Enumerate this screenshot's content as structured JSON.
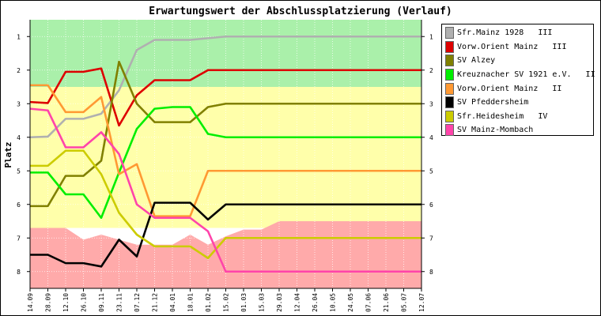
{
  "chart_data": {
    "type": "line",
    "title": "Erwartungswert der Abschlussplatzierung (Verlauf)",
    "ylabel": "Platz",
    "ylim": [
      0.5,
      8.5
    ],
    "yticks": [
      1,
      2,
      3,
      4,
      5,
      6,
      7,
      8
    ],
    "categories": [
      "14.09",
      "28.09",
      "12.10",
      "26.10",
      "09.11",
      "23.11",
      "07.12",
      "21.12",
      "04.01",
      "18.01",
      "01.02",
      "15.02",
      "01.03",
      "15.03",
      "29.03",
      "12.04",
      "26.04",
      "10.05",
      "24.05",
      "07.06",
      "21.06",
      "05.07",
      "12.07"
    ],
    "bands": [
      {
        "name": "upper",
        "color": "#aaf0aa",
        "from": 0.5,
        "to": 2.5
      },
      {
        "name": "middle",
        "color": "#ffffaa",
        "from": 2.5,
        "to": 6.7
      },
      {
        "name": "lower",
        "color": "#ffaaaa",
        "bottom": 8.5,
        "top": [
          6.7,
          6.7,
          6.7,
          7.05,
          6.9,
          7.05,
          7.2,
          7.2,
          7.2,
          6.9,
          7.2,
          6.95,
          6.75,
          6.75,
          6.5,
          6.5,
          6.5,
          6.5,
          6.5,
          6.5,
          6.5,
          6.5,
          6.5
        ]
      }
    ],
    "series": [
      {
        "name": "Sfr.Mainz 1928   III",
        "color": "#b0b0b0",
        "values": [
          4.0,
          3.98,
          3.45,
          3.45,
          3.3,
          2.6,
          1.4,
          1.1,
          1.1,
          1.1,
          1.05,
          1.0,
          1.0,
          1.0,
          1.0,
          1.0,
          1.0,
          1.0,
          1.0,
          1.0,
          1.0,
          1.0,
          1.0
        ]
      },
      {
        "name": "Vorw.Orient Mainz   III",
        "color": "#dd0000",
        "values": [
          2.95,
          2.98,
          2.05,
          2.05,
          1.95,
          3.65,
          2.75,
          2.3,
          2.3,
          2.3,
          2.0,
          2.0,
          2.0,
          2.0,
          2.0,
          2.0,
          2.0,
          2.0,
          2.0,
          2.0,
          2.0,
          2.0,
          2.0
        ]
      },
      {
        "name": "SV Alzey",
        "color": "#808000",
        "values": [
          6.05,
          6.05,
          5.15,
          5.15,
          4.7,
          1.75,
          3.0,
          3.55,
          3.55,
          3.55,
          3.1,
          3.0,
          3.0,
          3.0,
          3.0,
          3.0,
          3.0,
          3.0,
          3.0,
          3.0,
          3.0,
          3.0,
          3.0
        ]
      },
      {
        "name": "Kreuznacher SV 1921 e.V.   II",
        "color": "#00ee00",
        "values": [
          5.05,
          5.05,
          5.7,
          5.7,
          6.4,
          5.05,
          3.75,
          3.15,
          3.1,
          3.1,
          3.9,
          4.0,
          4.0,
          4.0,
          4.0,
          4.0,
          4.0,
          4.0,
          4.0,
          4.0,
          4.0,
          4.0,
          4.0
        ]
      },
      {
        "name": "Vorw.Orient Mainz   II",
        "color": "#ff9933",
        "values": [
          2.45,
          2.45,
          3.25,
          3.25,
          2.8,
          5.1,
          4.8,
          6.35,
          6.35,
          6.35,
          5.0,
          5.0,
          5.0,
          5.0,
          5.0,
          5.0,
          5.0,
          5.0,
          5.0,
          5.0,
          5.0,
          5.0,
          5.0
        ]
      },
      {
        "name": "SV Pfeddersheim",
        "color": "#000000",
        "values": [
          7.5,
          7.5,
          7.75,
          7.75,
          7.85,
          7.05,
          7.55,
          5.95,
          5.95,
          5.95,
          6.45,
          6.0,
          6.0,
          6.0,
          6.0,
          6.0,
          6.0,
          6.0,
          6.0,
          6.0,
          6.0,
          6.0,
          6.0
        ]
      },
      {
        "name": "Sfr.Heidesheim   IV",
        "color": "#cccc00",
        "values": [
          4.85,
          4.85,
          4.4,
          4.4,
          5.1,
          6.25,
          6.9,
          7.25,
          7.25,
          7.25,
          7.6,
          7.0,
          7.0,
          7.0,
          7.0,
          7.0,
          7.0,
          7.0,
          7.0,
          7.0,
          7.0,
          7.0,
          7.0
        ]
      },
      {
        "name": "SV Mainz-Mombach",
        "color": "#ff44aa",
        "values": [
          3.15,
          3.2,
          4.3,
          4.3,
          3.85,
          4.5,
          6.0,
          6.4,
          6.4,
          6.4,
          6.8,
          8.0,
          8.0,
          8.0,
          8.0,
          8.0,
          8.0,
          8.0,
          8.0,
          8.0,
          8.0,
          8.0,
          8.0
        ]
      }
    ],
    "grid": true,
    "legend": "right"
  }
}
